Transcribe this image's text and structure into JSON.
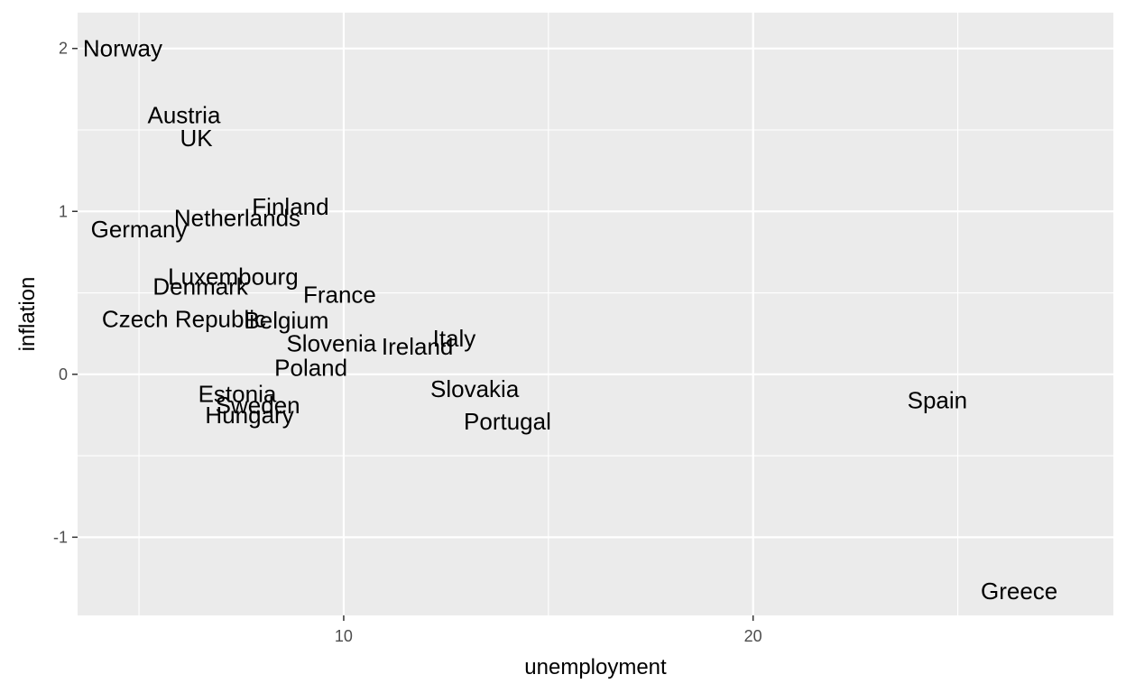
{
  "chart_data": {
    "type": "scatter",
    "xlabel": "unemployment",
    "ylabel": "inflation",
    "xlim": [
      3.5,
      28.8
    ],
    "ylim": [
      -1.48,
      2.22
    ],
    "xticks": [
      10,
      20
    ],
    "xtick_labels": [
      "10",
      "20"
    ],
    "yticks": [
      -1,
      0,
      1,
      2
    ],
    "ytick_labels": [
      "-1",
      "0",
      "1",
      "2"
    ],
    "grid": true,
    "panel_color": "#ebebeb",
    "grid_color": "#ffffff",
    "points": [
      {
        "label": "Norway",
        "x": 4.6,
        "y": 2.0
      },
      {
        "label": "Austria",
        "x": 6.1,
        "y": 1.59
      },
      {
        "label": "UK",
        "x": 6.4,
        "y": 1.45
      },
      {
        "label": "Finland",
        "x": 8.7,
        "y": 1.03
      },
      {
        "label": "Netherlands",
        "x": 7.4,
        "y": 0.96
      },
      {
        "label": "Germany",
        "x": 5.0,
        "y": 0.89
      },
      {
        "label": "Luxembourg",
        "x": 7.3,
        "y": 0.6
      },
      {
        "label": "Denmark",
        "x": 6.5,
        "y": 0.54
      },
      {
        "label": "France",
        "x": 9.9,
        "y": 0.49
      },
      {
        "label": "Czech Republic",
        "x": 6.1,
        "y": 0.34
      },
      {
        "label": "Belgium",
        "x": 8.6,
        "y": 0.33
      },
      {
        "label": "Italy",
        "x": 12.7,
        "y": 0.22
      },
      {
        "label": "Slovenia",
        "x": 9.7,
        "y": 0.19
      },
      {
        "label": "Ireland",
        "x": 11.8,
        "y": 0.17
      },
      {
        "label": "Poland",
        "x": 9.2,
        "y": 0.04
      },
      {
        "label": "Slovakia",
        "x": 13.2,
        "y": -0.09
      },
      {
        "label": "Estonia",
        "x": 7.4,
        "y": -0.12
      },
      {
        "label": "Sweden",
        "x": 7.9,
        "y": -0.19
      },
      {
        "label": "Hungary",
        "x": 7.7,
        "y": -0.25
      },
      {
        "label": "Spain",
        "x": 24.5,
        "y": -0.16
      },
      {
        "label": "Portugal",
        "x": 14.0,
        "y": -0.29
      },
      {
        "label": "Greece",
        "x": 26.5,
        "y": -1.33
      }
    ]
  }
}
